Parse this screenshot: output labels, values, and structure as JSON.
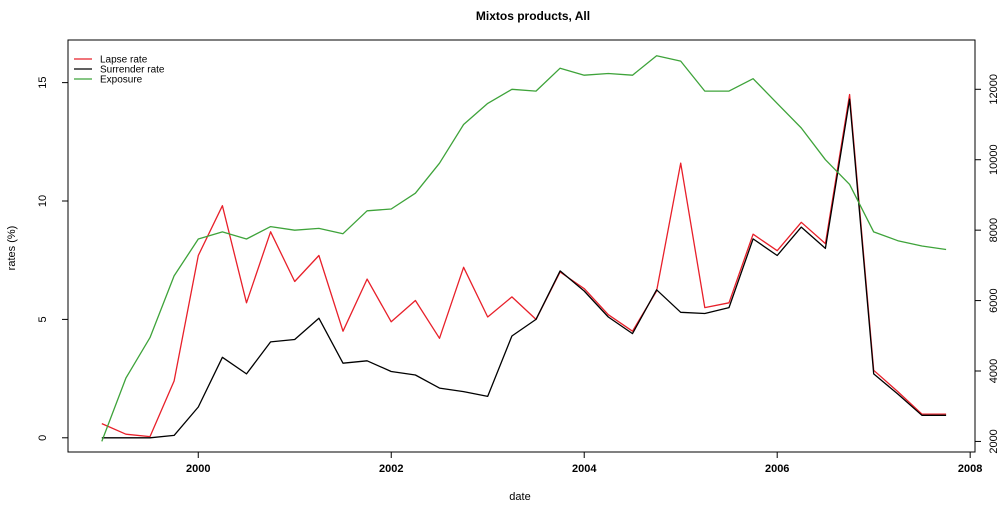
{
  "chart_data": {
    "type": "line",
    "title": "Mixtos products, All",
    "xlabel": "date",
    "ylabel": "rates (%)",
    "y2label": "",
    "x_ticks": [
      "2000",
      "2002",
      "2004",
      "2006",
      "2008"
    ],
    "y_ticks": [
      "0",
      "5",
      "10",
      "15"
    ],
    "y2_ticks": [
      "2000",
      "4000",
      "6000",
      "8000",
      "10000",
      "12000"
    ],
    "xlim": [
      1998.65,
      2008.05
    ],
    "ylim": [
      -0.6,
      16.8
    ],
    "y2lim": [
      1700,
      13400
    ],
    "legend_position": "top-left",
    "x": [
      1999.0,
      1999.25,
      1999.5,
      1999.75,
      2000.0,
      2000.25,
      2000.5,
      2000.75,
      2001.0,
      2001.25,
      2001.5,
      2001.75,
      2002.0,
      2002.25,
      2002.5,
      2002.75,
      2003.0,
      2003.25,
      2003.5,
      2003.75,
      2004.0,
      2004.25,
      2004.5,
      2004.75,
      2005.0,
      2005.25,
      2005.5,
      2005.75,
      2006.0,
      2006.25,
      2006.5,
      2006.75,
      2007.0,
      2007.25,
      2007.5,
      2007.75
    ],
    "series": [
      {
        "name": "Lapse rate",
        "axis": "left",
        "color": "#e8202a",
        "values": [
          0.6,
          0.15,
          0.05,
          2.4,
          7.7,
          9.8,
          5.7,
          8.7,
          6.6,
          7.7,
          4.5,
          6.7,
          4.9,
          5.8,
          4.2,
          7.2,
          5.1,
          5.95,
          5.0,
          7.0,
          6.3,
          5.2,
          4.5,
          6.2,
          11.6,
          5.5,
          5.7,
          8.6,
          7.9,
          9.1,
          8.2,
          14.5,
          2.85,
          1.95,
          1.0,
          1.0
        ]
      },
      {
        "name": "Surrender rate",
        "axis": "left",
        "color": "#000000",
        "values": [
          0.0,
          0.0,
          0.0,
          0.1,
          1.3,
          3.4,
          2.7,
          4.05,
          4.15,
          5.05,
          3.15,
          3.25,
          2.8,
          2.65,
          2.1,
          1.95,
          1.75,
          4.3,
          5.0,
          7.05,
          6.2,
          5.1,
          4.4,
          6.25,
          5.3,
          5.25,
          5.5,
          8.4,
          7.7,
          8.9,
          8.0,
          14.3,
          2.7,
          1.85,
          0.95,
          0.95
        ]
      },
      {
        "name": "Exposure",
        "axis": "right",
        "color": "#3ea33a",
        "values": [
          2000,
          3800,
          4950,
          6700,
          7750,
          7950,
          7750,
          8100,
          8000,
          8050,
          7900,
          8550,
          8600,
          9050,
          9900,
          11000,
          11600,
          12000,
          11950,
          12600,
          12400,
          12450,
          12400,
          12950,
          12800,
          11950,
          11950,
          12300,
          11600,
          10900,
          10000,
          9300,
          7950,
          7700,
          7550,
          7450
        ]
      }
    ]
  }
}
